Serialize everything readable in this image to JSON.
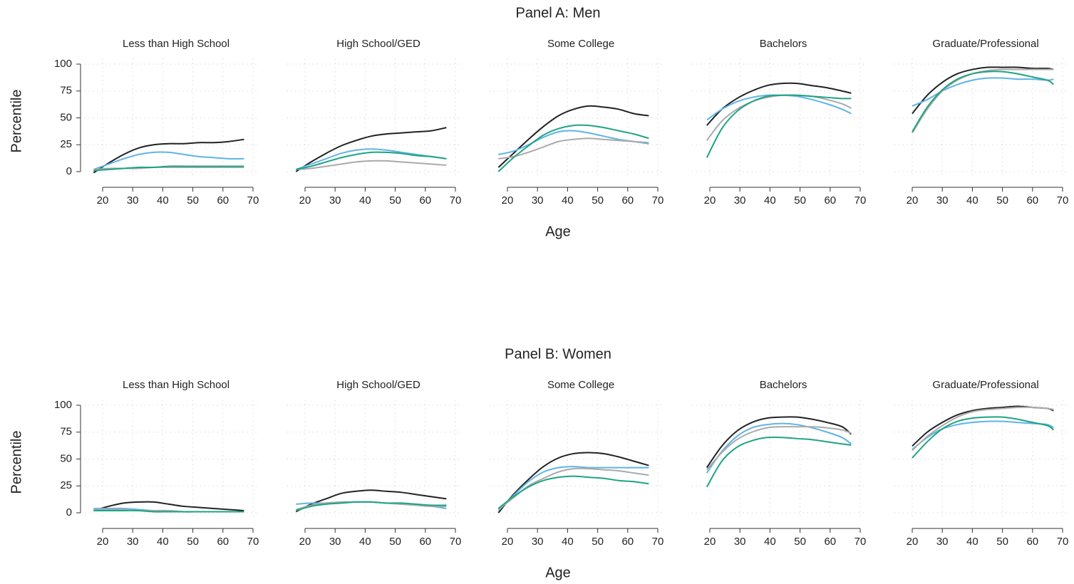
{
  "panels": [
    {
      "title": "Panel A: Men",
      "x_label": "Age",
      "y_label": "Percentile"
    },
    {
      "title": "Panel B: Women",
      "x_label": "Age",
      "y_label": "Percentile"
    }
  ],
  "chart_data": [
    {
      "type": "line",
      "title": "Less than High School",
      "x": [
        17,
        22,
        27,
        32,
        37,
        42,
        47,
        52,
        57,
        62,
        67
      ],
      "xlim": [
        14,
        72
      ],
      "ylim": [
        -5,
        105
      ],
      "xticks": [
        20,
        30,
        40,
        50,
        60,
        70
      ],
      "yticks": [
        0,
        25,
        50,
        75,
        100
      ],
      "grid": true,
      "series": [
        {
          "color": "#222222",
          "values": [
            -1,
            8,
            16,
            22,
            25,
            26,
            26,
            27,
            27,
            28,
            30
          ]
        },
        {
          "color": "#5fb4e6",
          "values": [
            2,
            7,
            12,
            16,
            18,
            18,
            16,
            14,
            13,
            12,
            12
          ]
        },
        {
          "color": "#aaaaaa",
          "values": [
            2,
            3,
            3,
            3,
            4,
            4,
            4,
            4,
            4,
            4,
            4
          ]
        },
        {
          "color": "#1fa383",
          "values": [
            1,
            2,
            3,
            4,
            4,
            5,
            5,
            5,
            5,
            5,
            5
          ]
        }
      ]
    },
    {
      "type": "line",
      "title": "High School/GED",
      "x": [
        17,
        22,
        27,
        32,
        37,
        42,
        47,
        52,
        57,
        62,
        67
      ],
      "xlim": [
        14,
        72
      ],
      "ylim": [
        -5,
        105
      ],
      "xticks": [
        20,
        30,
        40,
        50,
        60,
        70
      ],
      "yticks": [
        0,
        25,
        50,
        75,
        100
      ],
      "grid": true,
      "series": [
        {
          "color": "#222222",
          "values": [
            0,
            9,
            17,
            24,
            29,
            33,
            35,
            36,
            37,
            38,
            41
          ]
        },
        {
          "color": "#5fb4e6",
          "values": [
            2,
            7,
            12,
            17,
            20,
            21,
            20,
            18,
            16,
            14,
            12
          ]
        },
        {
          "color": "#aaaaaa",
          "values": [
            2,
            3,
            5,
            7,
            9,
            10,
            10,
            9,
            8,
            7,
            6
          ]
        },
        {
          "color": "#1fa383",
          "values": [
            2,
            5,
            9,
            13,
            16,
            18,
            18,
            17,
            15,
            14,
            12
          ]
        }
      ]
    },
    {
      "type": "line",
      "title": "Some College",
      "x": [
        17,
        22,
        27,
        32,
        37,
        42,
        47,
        52,
        57,
        62,
        67
      ],
      "xlim": [
        14,
        72
      ],
      "ylim": [
        -5,
        105
      ],
      "xticks": [
        20,
        30,
        40,
        50,
        60,
        70
      ],
      "yticks": [
        0,
        25,
        50,
        75,
        100
      ],
      "grid": true,
      "series": [
        {
          "color": "#222222",
          "values": [
            4,
            17,
            30,
            42,
            52,
            58,
            61,
            60,
            58,
            54,
            52
          ]
        },
        {
          "color": "#5fb4e6",
          "values": [
            16,
            19,
            25,
            32,
            37,
            38,
            36,
            33,
            30,
            28,
            26
          ]
        },
        {
          "color": "#aaaaaa",
          "values": [
            12,
            14,
            18,
            23,
            28,
            30,
            31,
            30,
            29,
            28,
            27
          ]
        },
        {
          "color": "#1fa383",
          "values": [
            0,
            13,
            24,
            34,
            40,
            43,
            43,
            41,
            38,
            35,
            31
          ]
        }
      ]
    },
    {
      "type": "line",
      "title": "Bachelors",
      "x": [
        19,
        24,
        29,
        34,
        39,
        44,
        49,
        54,
        59,
        64,
        67
      ],
      "xlim": [
        14,
        72
      ],
      "ylim": [
        -5,
        105
      ],
      "xticks": [
        20,
        30,
        40,
        50,
        60,
        70
      ],
      "yticks": [
        0,
        25,
        50,
        75,
        100
      ],
      "grid": true,
      "series": [
        {
          "color": "#222222",
          "values": [
            43,
            58,
            68,
            75,
            80,
            82,
            82,
            80,
            78,
            75,
            73
          ]
        },
        {
          "color": "#5fb4e6",
          "values": [
            48,
            58,
            65,
            69,
            71,
            71,
            70,
            67,
            63,
            58,
            54
          ]
        },
        {
          "color": "#aaaaaa",
          "values": [
            29,
            47,
            58,
            65,
            69,
            71,
            71,
            70,
            67,
            63,
            59
          ]
        },
        {
          "color": "#1fa383",
          "values": [
            13,
            40,
            56,
            65,
            70,
            71,
            71,
            70,
            69,
            68,
            68
          ]
        }
      ]
    },
    {
      "type": "line",
      "title": "Graduate/Professional",
      "x": [
        20,
        25,
        30,
        35,
        40,
        45,
        50,
        55,
        60,
        65,
        67
      ],
      "xlim": [
        14,
        72
      ],
      "ylim": [
        -5,
        105
      ],
      "xticks": [
        20,
        30,
        40,
        50,
        60,
        70
      ],
      "yticks": [
        0,
        25,
        50,
        75,
        100
      ],
      "grid": true,
      "series": [
        {
          "color": "#222222",
          "values": [
            54,
            71,
            83,
            91,
            95,
            97,
            97,
            97,
            96,
            96,
            95
          ]
        },
        {
          "color": "#5fb4e6",
          "values": [
            61,
            67,
            75,
            81,
            85,
            87,
            87,
            86,
            86,
            85,
            86
          ]
        },
        {
          "color": "#aaaaaa",
          "values": [
            36,
            58,
            75,
            85,
            91,
            94,
            95,
            95,
            95,
            95,
            95
          ]
        },
        {
          "color": "#1fa383",
          "values": [
            37,
            60,
            76,
            86,
            91,
            93,
            93,
            91,
            88,
            85,
            81
          ]
        }
      ]
    },
    {
      "type": "line",
      "title": "Less than High School",
      "x": [
        17,
        22,
        27,
        32,
        37,
        42,
        47,
        52,
        57,
        62,
        67
      ],
      "xlim": [
        14,
        72
      ],
      "ylim": [
        -5,
        105
      ],
      "xticks": [
        20,
        30,
        40,
        50,
        60,
        70
      ],
      "yticks": [
        0,
        25,
        50,
        75,
        100
      ],
      "grid": true,
      "series": [
        {
          "color": "#222222",
          "values": [
            2,
            6,
            9,
            10,
            10,
            8,
            6,
            5,
            4,
            3,
            2
          ]
        },
        {
          "color": "#5fb4e6",
          "values": [
            4,
            4,
            4,
            3,
            2,
            2,
            1,
            1,
            1,
            1,
            1
          ]
        },
        {
          "color": "#aaaaaa",
          "values": [
            3,
            3,
            3,
            2,
            2,
            2,
            1,
            1,
            1,
            1,
            1
          ]
        },
        {
          "color": "#1fa383",
          "values": [
            2,
            2,
            2,
            2,
            1,
            1,
            1,
            1,
            1,
            1,
            1
          ]
        }
      ]
    },
    {
      "type": "line",
      "title": "High School/GED",
      "x": [
        17,
        22,
        27,
        32,
        37,
        42,
        47,
        52,
        57,
        62,
        67
      ],
      "xlim": [
        14,
        72
      ],
      "ylim": [
        -5,
        105
      ],
      "xticks": [
        20,
        30,
        40,
        50,
        60,
        70
      ],
      "yticks": [
        0,
        25,
        50,
        75,
        100
      ],
      "grid": true,
      "series": [
        {
          "color": "#222222",
          "values": [
            1,
            8,
            13,
            18,
            20,
            21,
            20,
            19,
            17,
            15,
            13
          ]
        },
        {
          "color": "#5fb4e6",
          "values": [
            8,
            9,
            9,
            10,
            10,
            10,
            9,
            8,
            7,
            6,
            4
          ]
        },
        {
          "color": "#aaaaaa",
          "values": [
            3,
            7,
            9,
            10,
            10,
            10,
            9,
            8,
            7,
            6,
            6
          ]
        },
        {
          "color": "#1fa383",
          "values": [
            2,
            6,
            8,
            9,
            10,
            10,
            9,
            9,
            8,
            7,
            7
          ]
        }
      ]
    },
    {
      "type": "line",
      "title": "Some College",
      "x": [
        17,
        22,
        27,
        32,
        37,
        42,
        47,
        52,
        57,
        62,
        67
      ],
      "xlim": [
        14,
        72
      ],
      "ylim": [
        -5,
        105
      ],
      "xticks": [
        20,
        30,
        40,
        50,
        60,
        70
      ],
      "yticks": [
        0,
        25,
        50,
        75,
        100
      ],
      "grid": true,
      "series": [
        {
          "color": "#222222",
          "values": [
            0,
            17,
            31,
            43,
            51,
            55,
            56,
            55,
            52,
            48,
            44
          ]
        },
        {
          "color": "#5fb4e6",
          "values": [
            2,
            16,
            29,
            38,
            42,
            43,
            42,
            42,
            42,
            42,
            42
          ]
        },
        {
          "color": "#aaaaaa",
          "values": [
            3,
            14,
            25,
            32,
            38,
            41,
            41,
            40,
            39,
            37,
            35
          ]
        },
        {
          "color": "#1fa383",
          "values": [
            4,
            15,
            24,
            30,
            33,
            34,
            33,
            32,
            30,
            29,
            27
          ]
        }
      ]
    },
    {
      "type": "line",
      "title": "Bachelors",
      "x": [
        19,
        24,
        29,
        34,
        39,
        44,
        49,
        54,
        59,
        64,
        67
      ],
      "xlim": [
        14,
        72
      ],
      "ylim": [
        -5,
        105
      ],
      "xticks": [
        20,
        30,
        40,
        50,
        60,
        70
      ],
      "yticks": [
        0,
        25,
        50,
        75,
        100
      ],
      "grid": true,
      "series": [
        {
          "color": "#222222",
          "values": [
            42,
            62,
            76,
            84,
            88,
            89,
            89,
            87,
            84,
            80,
            73
          ]
        },
        {
          "color": "#5fb4e6",
          "values": [
            37,
            57,
            71,
            79,
            82,
            83,
            82,
            79,
            75,
            70,
            64
          ]
        },
        {
          "color": "#aaaaaa",
          "values": [
            40,
            56,
            68,
            75,
            79,
            80,
            80,
            80,
            79,
            77,
            74
          ]
        },
        {
          "color": "#1fa383",
          "values": [
            24,
            48,
            61,
            67,
            70,
            70,
            69,
            68,
            66,
            64,
            63
          ]
        }
      ]
    },
    {
      "type": "line",
      "title": "Graduate/Professional",
      "x": [
        20,
        25,
        30,
        35,
        40,
        45,
        50,
        55,
        60,
        65,
        67
      ],
      "xlim": [
        14,
        72
      ],
      "ylim": [
        -5,
        105
      ],
      "xticks": [
        20,
        30,
        40,
        50,
        60,
        70
      ],
      "yticks": [
        0,
        25,
        50,
        75,
        100
      ],
      "grid": true,
      "series": [
        {
          "color": "#222222",
          "values": [
            62,
            75,
            84,
            91,
            95,
            97,
            98,
            99,
            98,
            97,
            95
          ]
        },
        {
          "color": "#5fb4e6",
          "values": [
            59,
            70,
            78,
            82,
            84,
            85,
            85,
            84,
            83,
            82,
            79
          ]
        },
        {
          "color": "#aaaaaa",
          "values": [
            58,
            71,
            81,
            89,
            94,
            96,
            97,
            98,
            98,
            97,
            96
          ]
        },
        {
          "color": "#1fa383",
          "values": [
            51,
            66,
            78,
            85,
            88,
            89,
            89,
            87,
            84,
            81,
            77
          ]
        }
      ]
    }
  ]
}
